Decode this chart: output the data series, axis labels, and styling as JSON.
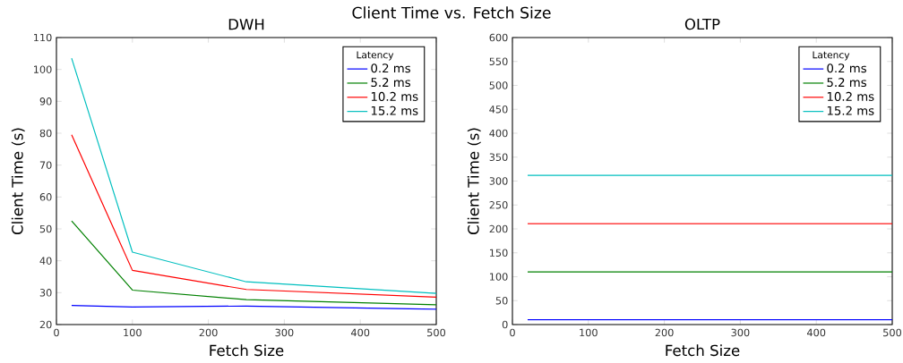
{
  "chart_data": [
    {
      "type": "line",
      "title": "DWH",
      "annotations": [
        "Client Time vs. Fetch Size"
      ],
      "xlabel": "Fetch Size",
      "ylabel": "Client Time (s)",
      "legend_title": "Latency",
      "legend": "top right",
      "x": [
        20,
        100,
        250,
        500
      ],
      "xlim": [
        0,
        500
      ],
      "xticks": [
        0,
        100,
        200,
        300,
        400,
        500
      ],
      "ylim": [
        20,
        110
      ],
      "yticks": [
        20,
        30,
        40,
        50,
        60,
        70,
        80,
        90,
        100,
        110
      ],
      "series": [
        {
          "name": "0.2 ms",
          "color": "#0000ff",
          "values": [
            26,
            25.5,
            25.8,
            24.8
          ]
        },
        {
          "name": "5.2 ms",
          "color": "#008000",
          "values": [
            52.5,
            30.8,
            27.8,
            26.2
          ]
        },
        {
          "name": "10.2 ms",
          "color": "#ff0000",
          "values": [
            79.5,
            37,
            31,
            28.6
          ]
        },
        {
          "name": "15.2 ms",
          "color": "#00bfbf",
          "values": [
            103.5,
            42.7,
            33.4,
            29.8
          ]
        }
      ]
    },
    {
      "type": "line",
      "title": "OLTP",
      "xlabel": "Fetch Size",
      "ylabel": "Client Time (s)",
      "legend_title": "Latency",
      "legend": "top right",
      "x": [
        20,
        100,
        250,
        500
      ],
      "xlim": [
        0,
        500
      ],
      "xticks": [
        0,
        100,
        200,
        300,
        400,
        500
      ],
      "ylim": [
        0,
        600
      ],
      "yticks": [
        0,
        50,
        100,
        150,
        200,
        250,
        300,
        350,
        400,
        450,
        500,
        550,
        600
      ],
      "series": [
        {
          "name": "0.2 ms",
          "color": "#0000ff",
          "values": [
            10,
            10,
            10,
            10
          ]
        },
        {
          "name": "5.2 ms",
          "color": "#008000",
          "values": [
            110,
            110,
            110,
            110
          ]
        },
        {
          "name": "10.2 ms",
          "color": "#ff0000",
          "values": [
            211,
            211,
            211,
            211
          ]
        },
        {
          "name": "15.2 ms",
          "color": "#00bfbf",
          "values": [
            312,
            312,
            312,
            312
          ]
        }
      ]
    }
  ]
}
